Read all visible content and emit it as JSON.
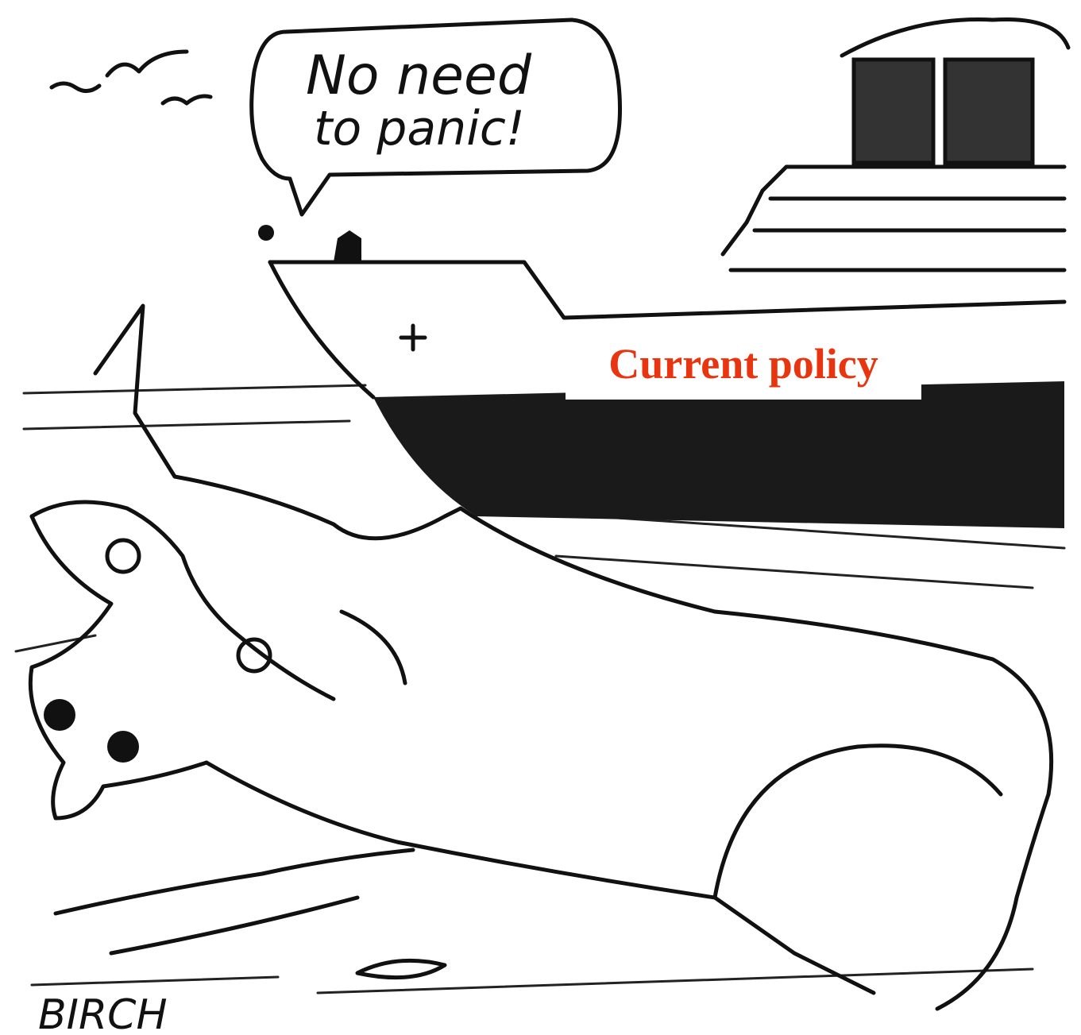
{
  "speech_bubble": {
    "lines": [
      "No need",
      "to panic!"
    ]
  },
  "label": "Current policy",
  "signature": "BIRCH"
}
